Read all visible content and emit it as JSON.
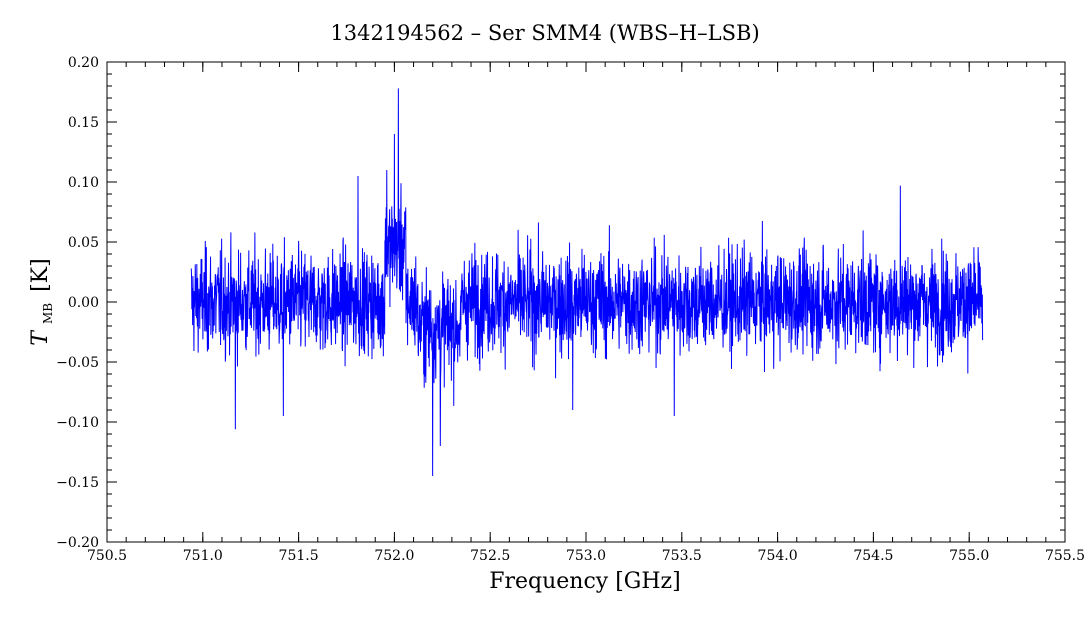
{
  "chart_data": {
    "type": "line",
    "title": "1342194562 – Ser SMM4 (WBS–H–LSB)",
    "xlabel": "Frequency [GHz]",
    "ylabel": {
      "symbol": "T",
      "subscript": "MB",
      "unit": "[K]"
    },
    "xlim": [
      750.5,
      755.5
    ],
    "ylim": [
      -0.2,
      0.2
    ],
    "xticks": [
      "750.5",
      "751.0",
      "751.5",
      "752.0",
      "752.5",
      "753.0",
      "753.5",
      "754.0",
      "754.5",
      "755.0",
      "755.5"
    ],
    "yticks": [
      "0.20",
      "0.15",
      "0.10",
      "0.05",
      "0.00",
      "−0.05",
      "−0.10",
      "−0.15",
      "−0.20"
    ],
    "grid": false,
    "series": [
      {
        "color": "#0000ff",
        "x_range": [
          750.94,
          755.07
        ],
        "noise_rms": 0.028,
        "features": [
          {
            "x": 752.02,
            "y": 0.178,
            "kind": "peak"
          },
          {
            "x": 752.0,
            "y": 0.14,
            "kind": "peak"
          },
          {
            "x": 751.96,
            "y": 0.11,
            "kind": "peak"
          },
          {
            "x": 751.81,
            "y": 0.105,
            "kind": "peak"
          },
          {
            "x": 751.17,
            "y": -0.106,
            "kind": "dip"
          },
          {
            "x": 752.2,
            "y": -0.145,
            "kind": "dip"
          },
          {
            "x": 752.24,
            "y": -0.12,
            "kind": "dip"
          },
          {
            "x": 754.64,
            "y": 0.097,
            "kind": "peak"
          },
          {
            "x": 751.42,
            "y": -0.095,
            "kind": "dip"
          },
          {
            "x": 752.93,
            "y": -0.09,
            "kind": "dip"
          },
          {
            "x": 753.46,
            "y": -0.095,
            "kind": "dip"
          }
        ]
      }
    ]
  }
}
